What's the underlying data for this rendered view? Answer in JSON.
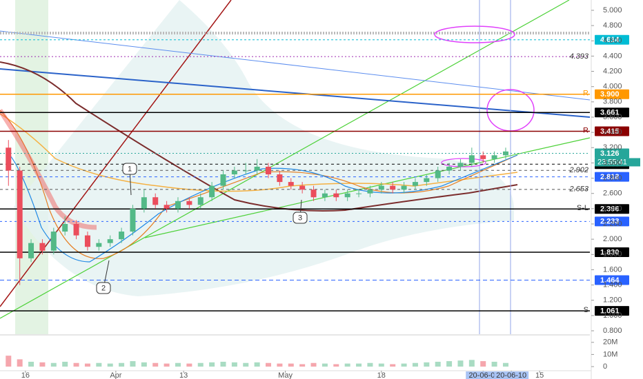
{
  "chart_data": {
    "type": "candlestick",
    "x": [
      0,
      2,
      4,
      6,
      8,
      10,
      12,
      14,
      16,
      18,
      20,
      22,
      24,
      26,
      28,
      30,
      32,
      34,
      36,
      38,
      40,
      42,
      44,
      46,
      48,
      50,
      52,
      54,
      56,
      58,
      60,
      62,
      64,
      66,
      68,
      70,
      72,
      74,
      76,
      78,
      80,
      82,
      84,
      86,
      88
    ],
    "open": [
      3.2,
      2.9,
      1.75,
      1.95,
      1.85,
      2.1,
      2.2,
      2.05,
      1.9,
      1.95,
      2.0,
      2.1,
      2.4,
      2.55,
      2.45,
      2.4,
      2.5,
      2.45,
      2.55,
      2.7,
      2.85,
      2.9,
      2.9,
      2.95,
      2.85,
      2.75,
      2.7,
      2.65,
      2.55,
      2.6,
      2.55,
      2.6,
      2.6,
      2.65,
      2.7,
      2.65,
      2.7,
      2.75,
      2.8,
      2.9,
      2.95,
      3.0,
      3.1,
      3.05,
      3.1
    ],
    "high": [
      3.3,
      2.95,
      2.0,
      2.0,
      2.15,
      2.3,
      2.25,
      2.1,
      2.0,
      2.05,
      2.15,
      2.45,
      2.65,
      2.6,
      2.5,
      2.55,
      2.55,
      2.6,
      2.75,
      2.9,
      2.95,
      3.0,
      3.05,
      3.0,
      2.9,
      2.8,
      2.75,
      2.7,
      2.65,
      2.65,
      2.65,
      2.65,
      2.7,
      2.75,
      2.75,
      2.75,
      2.8,
      2.85,
      2.95,
      3.0,
      3.05,
      3.2,
      3.15,
      3.15,
      3.2
    ],
    "low": [
      2.7,
      1.4,
      1.7,
      1.8,
      1.8,
      2.05,
      2.0,
      1.85,
      1.85,
      1.9,
      1.95,
      2.05,
      2.35,
      2.4,
      2.35,
      2.35,
      2.4,
      2.4,
      2.5,
      2.65,
      2.8,
      2.85,
      2.85,
      2.8,
      2.7,
      2.65,
      2.6,
      2.5,
      2.5,
      2.5,
      2.5,
      2.55,
      2.55,
      2.6,
      2.6,
      2.6,
      2.65,
      2.7,
      2.75,
      2.85,
      2.9,
      2.95,
      3.0,
      3.0,
      3.05
    ],
    "close": [
      2.9,
      1.75,
      1.95,
      1.85,
      2.1,
      2.2,
      2.05,
      1.9,
      1.95,
      2.0,
      2.1,
      2.4,
      2.55,
      2.45,
      2.4,
      2.5,
      2.45,
      2.55,
      2.7,
      2.85,
      2.9,
      2.9,
      2.95,
      2.85,
      2.75,
      2.7,
      2.65,
      2.55,
      2.6,
      2.55,
      2.6,
      2.6,
      2.65,
      2.7,
      2.65,
      2.7,
      2.75,
      2.8,
      2.9,
      2.95,
      3.0,
      3.1,
      3.05,
      3.1,
      3.15
    ],
    "up_color": "#53b987",
    "down_color": "#eb4d5c",
    "xlim": [
      -1.5,
      102.9
    ],
    "xticks": [
      {
        "value": 3,
        "label": "16"
      },
      {
        "value": 19,
        "label": "Apr"
      },
      {
        "value": 31,
        "label": "13"
      },
      {
        "value": 49,
        "label": "May"
      },
      {
        "value": 66,
        "label": "18"
      },
      {
        "value": 84,
        "label": "20-06-0("
      },
      {
        "value": 89,
        "label": "20-06-10"
      },
      {
        "value": 94,
        "label": "15"
      }
    ],
    "ylim": [
      0.755,
      5.135
    ],
    "yticks": [
      {
        "value": 0.8,
        "label": "0.800"
      },
      {
        "value": 1.0,
        "label": "1.000"
      },
      {
        "value": 1.2,
        "label": "1.200"
      },
      {
        "value": 1.4,
        "label": "1.400"
      },
      {
        "value": 1.6,
        "label": "1.600"
      },
      {
        "value": 1.8,
        "label": "1.800"
      },
      {
        "value": 2.0,
        "label": "2.000"
      },
      {
        "value": 2.2,
        "label": "2.200"
      },
      {
        "value": 2.4,
        "label": "2.400"
      },
      {
        "value": 2.6,
        "label": "2.600"
      },
      {
        "value": 2.8,
        "label": "2.800"
      },
      {
        "value": 3.0,
        "label": "3.000"
      },
      {
        "value": 3.2,
        "label": "3.200"
      },
      {
        "value": 3.4,
        "label": "3.400"
      },
      {
        "value": 3.6,
        "label": "3.600"
      },
      {
        "value": 3.8,
        "label": "3.800"
      },
      {
        "value": 4.0,
        "label": "4.000"
      },
      {
        "value": 4.2,
        "label": "4.200"
      },
      {
        "value": 4.4,
        "label": "4.400"
      },
      {
        "value": 4.6,
        "label": "4.600"
      },
      {
        "value": 4.8,
        "label": "4.800"
      },
      {
        "value": 5.0,
        "label": "5.000"
      }
    ],
    "levels": [
      {
        "value": 4.614,
        "label": "4.614",
        "color": "#00bcd4",
        "style": "box",
        "dash": "3,3"
      },
      {
        "value": 4.393,
        "label": "4.393",
        "color": "#9c27b0",
        "style": "text",
        "dash": "2,3"
      },
      {
        "value": 3.9,
        "label": "3.900",
        "color": "#ff9800",
        "style": "box",
        "dash": "",
        "tag": "R"
      },
      {
        "value": 3.661,
        "label": "3.661",
        "color": "#000000",
        "style": "box",
        "dash": ""
      },
      {
        "value": 3.415,
        "label": "3.415",
        "color": "#8b0000",
        "style": "box",
        "dash": "",
        "tag": "R"
      },
      {
        "value": 3.126,
        "label": "3.126",
        "color": "#26a69a",
        "style": "box",
        "dash": "2,3"
      },
      {
        "value": 2.983,
        "label": "2.983",
        "color": "#000000",
        "style": "box",
        "dash": "4,4"
      },
      {
        "value": 2.902,
        "label": "2.902",
        "color": "#555555",
        "style": "text",
        "dash": "4,4"
      },
      {
        "value": 2.818,
        "label": "2.818",
        "color": "#2962ff",
        "style": "box",
        "dash": "4,4"
      },
      {
        "value": 2.653,
        "label": "2.653",
        "color": "#555555",
        "style": "text",
        "dash": "4,4"
      },
      {
        "value": 2.396,
        "label": "2.396",
        "color": "#000000",
        "style": "box",
        "dash": "",
        "tag": "S-L"
      },
      {
        "value": 2.233,
        "label": "2.233",
        "color": "#2962ff",
        "style": "box",
        "dash": "3,4"
      },
      {
        "value": 1.83,
        "label": "1.830",
        "color": "#000000",
        "style": "box",
        "dash": ""
      },
      {
        "value": 1.464,
        "label": "1.464",
        "color": "#2962ff",
        "style": "box",
        "dash": "6,4"
      },
      {
        "value": 1.061,
        "label": "1.061",
        "color": "#000000",
        "style": "box",
        "dash": "",
        "tag": "S"
      }
    ],
    "countdown": "23:55:41",
    "annotations": [
      "1",
      "2",
      "3"
    ],
    "volume": {
      "values": [
        9000000,
        6000000,
        4000000,
        3500000,
        3000000,
        4000000,
        3000000,
        2500000,
        3000000,
        2500000,
        3000000,
        4500000,
        3500000,
        3000000,
        2500000,
        3000000,
        2500000,
        3000000,
        3500000,
        4000000,
        3500000,
        3000000,
        3500000,
        3000000,
        2500000,
        2500000,
        2000000,
        3000000,
        2500000,
        2000000,
        2500000,
        2500000,
        3000000,
        2500000,
        2000000,
        2500000,
        3000000,
        3500000,
        4000000,
        4500000,
        5000000,
        5500000,
        4500000,
        4000000,
        3000000
      ],
      "ylim": [
        0,
        25000000
      ],
      "yticks": [
        0,
        {
          "value": 10000000,
          "label": "10M"
        },
        {
          "value": 20000000,
          "label": "20M"
        }
      ]
    }
  }
}
